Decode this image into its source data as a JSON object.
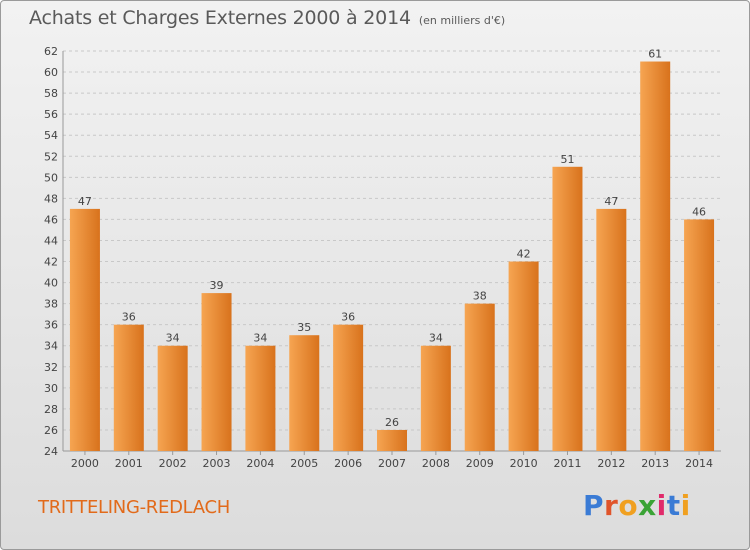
{
  "title": "Achats et Charges Externes 2000 à 2014",
  "unit_note": "(en milliers d'€)",
  "town": "TRITTELING-REDLACH",
  "logo": {
    "text": "Proxiti",
    "letter_colors": [
      "#3a7bd5",
      "#e0542a",
      "#f0a020",
      "#3aa335",
      "#e02a6a",
      "#3a7bd5",
      "#f0a020"
    ]
  },
  "colors": {
    "bar_light": "#f6a552",
    "bar_dark": "#d8721c",
    "label": "#444444",
    "town": "#e26a1a"
  },
  "chart_data": {
    "type": "bar",
    "categories": [
      "2000",
      "2001",
      "2002",
      "2003",
      "2004",
      "2005",
      "2006",
      "2007",
      "2008",
      "2009",
      "2010",
      "2011",
      "2012",
      "2013",
      "2014"
    ],
    "values": [
      47,
      36,
      34,
      39,
      34,
      35,
      36,
      26,
      34,
      38,
      42,
      51,
      47,
      61,
      46
    ],
    "ylim": [
      24,
      62
    ],
    "yticks": [
      24,
      26,
      28,
      30,
      32,
      34,
      36,
      38,
      40,
      42,
      44,
      46,
      48,
      50,
      52,
      54,
      56,
      58,
      60,
      62
    ],
    "grid": true,
    "title": "Achats et Charges Externes 2000 à 2014",
    "xlabel": "",
    "ylabel": ""
  }
}
